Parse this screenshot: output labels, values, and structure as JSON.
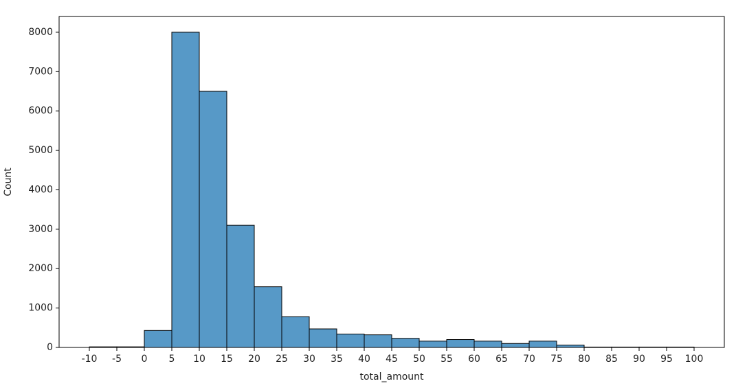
{
  "chart_data": {
    "type": "histogram",
    "xlabel": "total_amount",
    "ylabel": "Count",
    "bins": [
      -10,
      -5,
      0,
      5,
      10,
      15,
      20,
      25,
      30,
      35,
      40,
      45,
      50,
      55,
      60,
      65,
      70,
      75,
      80,
      85,
      90,
      95,
      100
    ],
    "values": [
      15,
      15,
      430,
      8000,
      6500,
      3100,
      1540,
      780,
      470,
      340,
      320,
      230,
      160,
      200,
      160,
      100,
      160,
      60,
      10,
      10,
      10,
      10
    ],
    "color": "#5799c7",
    "edgecolor": "#000000",
    "xlim": [
      -15.5,
      105.5
    ],
    "xticks": [
      -10,
      -5,
      0,
      5,
      10,
      15,
      20,
      25,
      30,
      35,
      40,
      45,
      50,
      55,
      60,
      65,
      70,
      75,
      80,
      85,
      90,
      95,
      100
    ],
    "ylim": [
      0,
      8400
    ],
    "yticks": [
      0,
      1000,
      2000,
      3000,
      4000,
      5000,
      6000,
      7000,
      8000
    ],
    "grid": false
  }
}
